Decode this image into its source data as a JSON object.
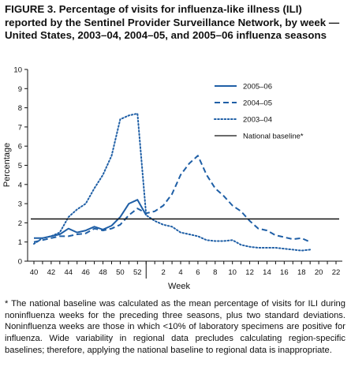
{
  "title": "FIGURE 3. Percentage of visits for influenza-like illness (ILI) reported by the Sentinel Provider Surveillance Network, by week — United States, 2003–04, 2004–05, and 2005–06 influenza seasons",
  "footnote": "* The national baseline was calculated as the mean percentage of visits for ILI during noninfluenza weeks for the preceding three seasons, plus two standard deviations. Noninfluenza weeks are those in which <10% of laboratory specimens are positive for influenza. Wide variability in regional data precludes calculating region-specific baselines; therefore, applying the national baseline to regional data is inappropriate.",
  "chart_data": {
    "type": "line",
    "xlabel": "Week",
    "ylabel": "Percentage",
    "ylim": [
      0,
      10
    ],
    "yticks": [
      0,
      1,
      2,
      3,
      4,
      5,
      6,
      7,
      8,
      9,
      10
    ],
    "xtick_labels": [
      "40",
      "42",
      "44",
      "46",
      "48",
      "50",
      "52",
      "2",
      "4",
      "6",
      "8",
      "10",
      "12",
      "14",
      "16",
      "18",
      "20",
      "22"
    ],
    "weeks": [
      "40",
      "41",
      "42",
      "43",
      "44",
      "45",
      "46",
      "47",
      "48",
      "49",
      "50",
      "51",
      "52",
      "53",
      "1",
      "2",
      "3",
      "4",
      "5",
      "6",
      "7",
      "8",
      "9",
      "10",
      "11",
      "12",
      "13",
      "14",
      "15",
      "16",
      "17",
      "18",
      "19",
      "20",
      "21",
      "22"
    ],
    "grid": false,
    "legend_position": "top-right",
    "series": [
      {
        "name": "2005–06",
        "style": "solid",
        "color": "#1f5fa6",
        "values": [
          1.2,
          1.2,
          1.3,
          1.4,
          1.7,
          1.5,
          1.6,
          1.8,
          1.65,
          1.85,
          2.3,
          3.0,
          3.2,
          2.4
        ]
      },
      {
        "name": "2004–05",
        "style": "dashed",
        "color": "#1f5fa6",
        "values": [
          1.0,
          1.1,
          1.2,
          1.3,
          1.3,
          1.4,
          1.45,
          1.7,
          1.6,
          1.7,
          1.9,
          2.4,
          2.75,
          2.5,
          2.6,
          2.9,
          3.5,
          4.5,
          5.1,
          5.5,
          4.5,
          3.8,
          3.4,
          2.9,
          2.6,
          2.1,
          1.7,
          1.6,
          1.35,
          1.25,
          1.15,
          1.2,
          1.0
        ]
      },
      {
        "name": "2003–04",
        "style": "dotted",
        "color": "#1f5fa6",
        "values": [
          0.9,
          1.2,
          1.3,
          1.5,
          2.3,
          2.7,
          3.0,
          3.8,
          4.5,
          5.5,
          7.4,
          7.6,
          7.7,
          2.4,
          2.1,
          1.9,
          1.8,
          1.5,
          1.4,
          1.3,
          1.1,
          1.05,
          1.05,
          1.1,
          0.85,
          0.75,
          0.7,
          0.7,
          0.7,
          0.65,
          0.6,
          0.55,
          0.6
        ]
      },
      {
        "name": "National baseline*",
        "style": "solid",
        "color": "#111111",
        "values": [
          2.2,
          2.2
        ]
      }
    ]
  }
}
